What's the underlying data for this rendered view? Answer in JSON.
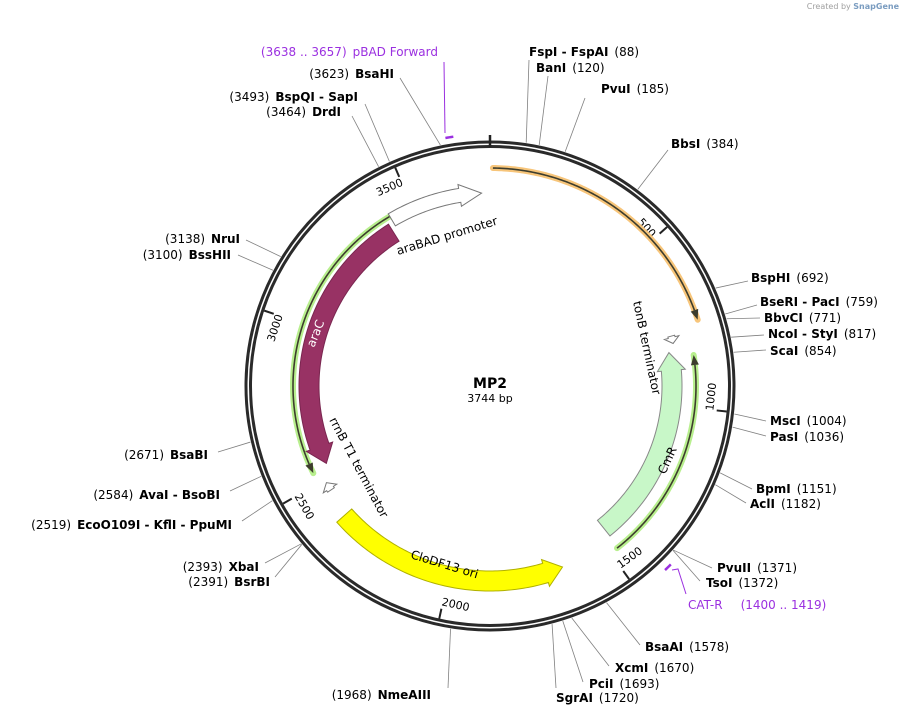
{
  "watermark": {
    "prefix": "Created by",
    "brand": "SnapGene"
  },
  "plasmid": {
    "name": "MP2",
    "length_label": "3744 bp",
    "length": 3744
  },
  "ticks": [
    {
      "bp": 500,
      "label": "500"
    },
    {
      "bp": 1000,
      "label": "1000"
    },
    {
      "bp": 1500,
      "label": "1500"
    },
    {
      "bp": 2000,
      "label": "2000"
    },
    {
      "bp": 2500,
      "label": "2500"
    },
    {
      "bp": 3000,
      "label": "3000"
    },
    {
      "bp": 3500,
      "label": "3500"
    }
  ],
  "features": {
    "araBAD": {
      "label": "araBAD promoter"
    },
    "araC": {
      "label": "araC"
    },
    "rrnB": {
      "label": "rrnB T1 terminator"
    },
    "clodf13": {
      "label": "CloDF13 ori"
    },
    "cmr": {
      "label": "CmR"
    },
    "tonB": {
      "label": "tonB terminator"
    }
  },
  "colors": {
    "araC": "#983264",
    "cmr": "#c8f7c8",
    "ori": "#ffff00",
    "orf_orange": "#f7c57a",
    "orf_green": "#b8ef8e",
    "primer": "#9b30e0"
  },
  "primers": [
    {
      "name": "pBAD Forward",
      "range": "(3638 .. 3657)",
      "start": 3638,
      "end": 3657
    },
    {
      "name": "CAT-R",
      "range": "(1400 .. 1419)",
      "start": 1400,
      "end": 1419
    }
  ],
  "enzymes": [
    {
      "names": "FspI  - FspAI",
      "pos": 88
    },
    {
      "names": "BanI",
      "pos": 120
    },
    {
      "names": "PvuI",
      "pos": 185
    },
    {
      "names": "BbsI",
      "pos": 384
    },
    {
      "names": "BspHI",
      "pos": 692
    },
    {
      "names": "BseRI  - PacI",
      "pos": 759
    },
    {
      "names": "BbvCI",
      "pos": 771
    },
    {
      "names": "NcoI  - StyI",
      "pos": 817
    },
    {
      "names": "ScaI",
      "pos": 854
    },
    {
      "names": "MscI",
      "pos": 1004
    },
    {
      "names": "PasI",
      "pos": 1036
    },
    {
      "names": "BpmI",
      "pos": 1151
    },
    {
      "names": "AclI",
      "pos": 1182
    },
    {
      "names": "PvuII",
      "pos": 1371
    },
    {
      "names": "TsoI",
      "pos": 1372
    },
    {
      "names": "BsaAI",
      "pos": 1578
    },
    {
      "names": "XcmI",
      "pos": 1670
    },
    {
      "names": "PciI",
      "pos": 1693
    },
    {
      "names": "SgrAI",
      "pos": 1720
    },
    {
      "names": "NmeAIII",
      "pos": 1968
    },
    {
      "names": "BsrBI",
      "pos": 2391
    },
    {
      "names": "XbaI",
      "pos": 2393
    },
    {
      "names": "EcoO109I  - KflI  - PpuMI",
      "pos": 2519
    },
    {
      "names": "AvaI  - BsoBI",
      "pos": 2584
    },
    {
      "names": "BsaBI",
      "pos": 2671
    },
    {
      "names": "BssHII",
      "pos": 3100
    },
    {
      "names": "NruI",
      "pos": 3138
    },
    {
      "names": "DrdI",
      "pos": 3464
    },
    {
      "names": "BspQI  - SapI",
      "pos": 3493
    },
    {
      "names": "BsaHI",
      "pos": 3623
    }
  ]
}
